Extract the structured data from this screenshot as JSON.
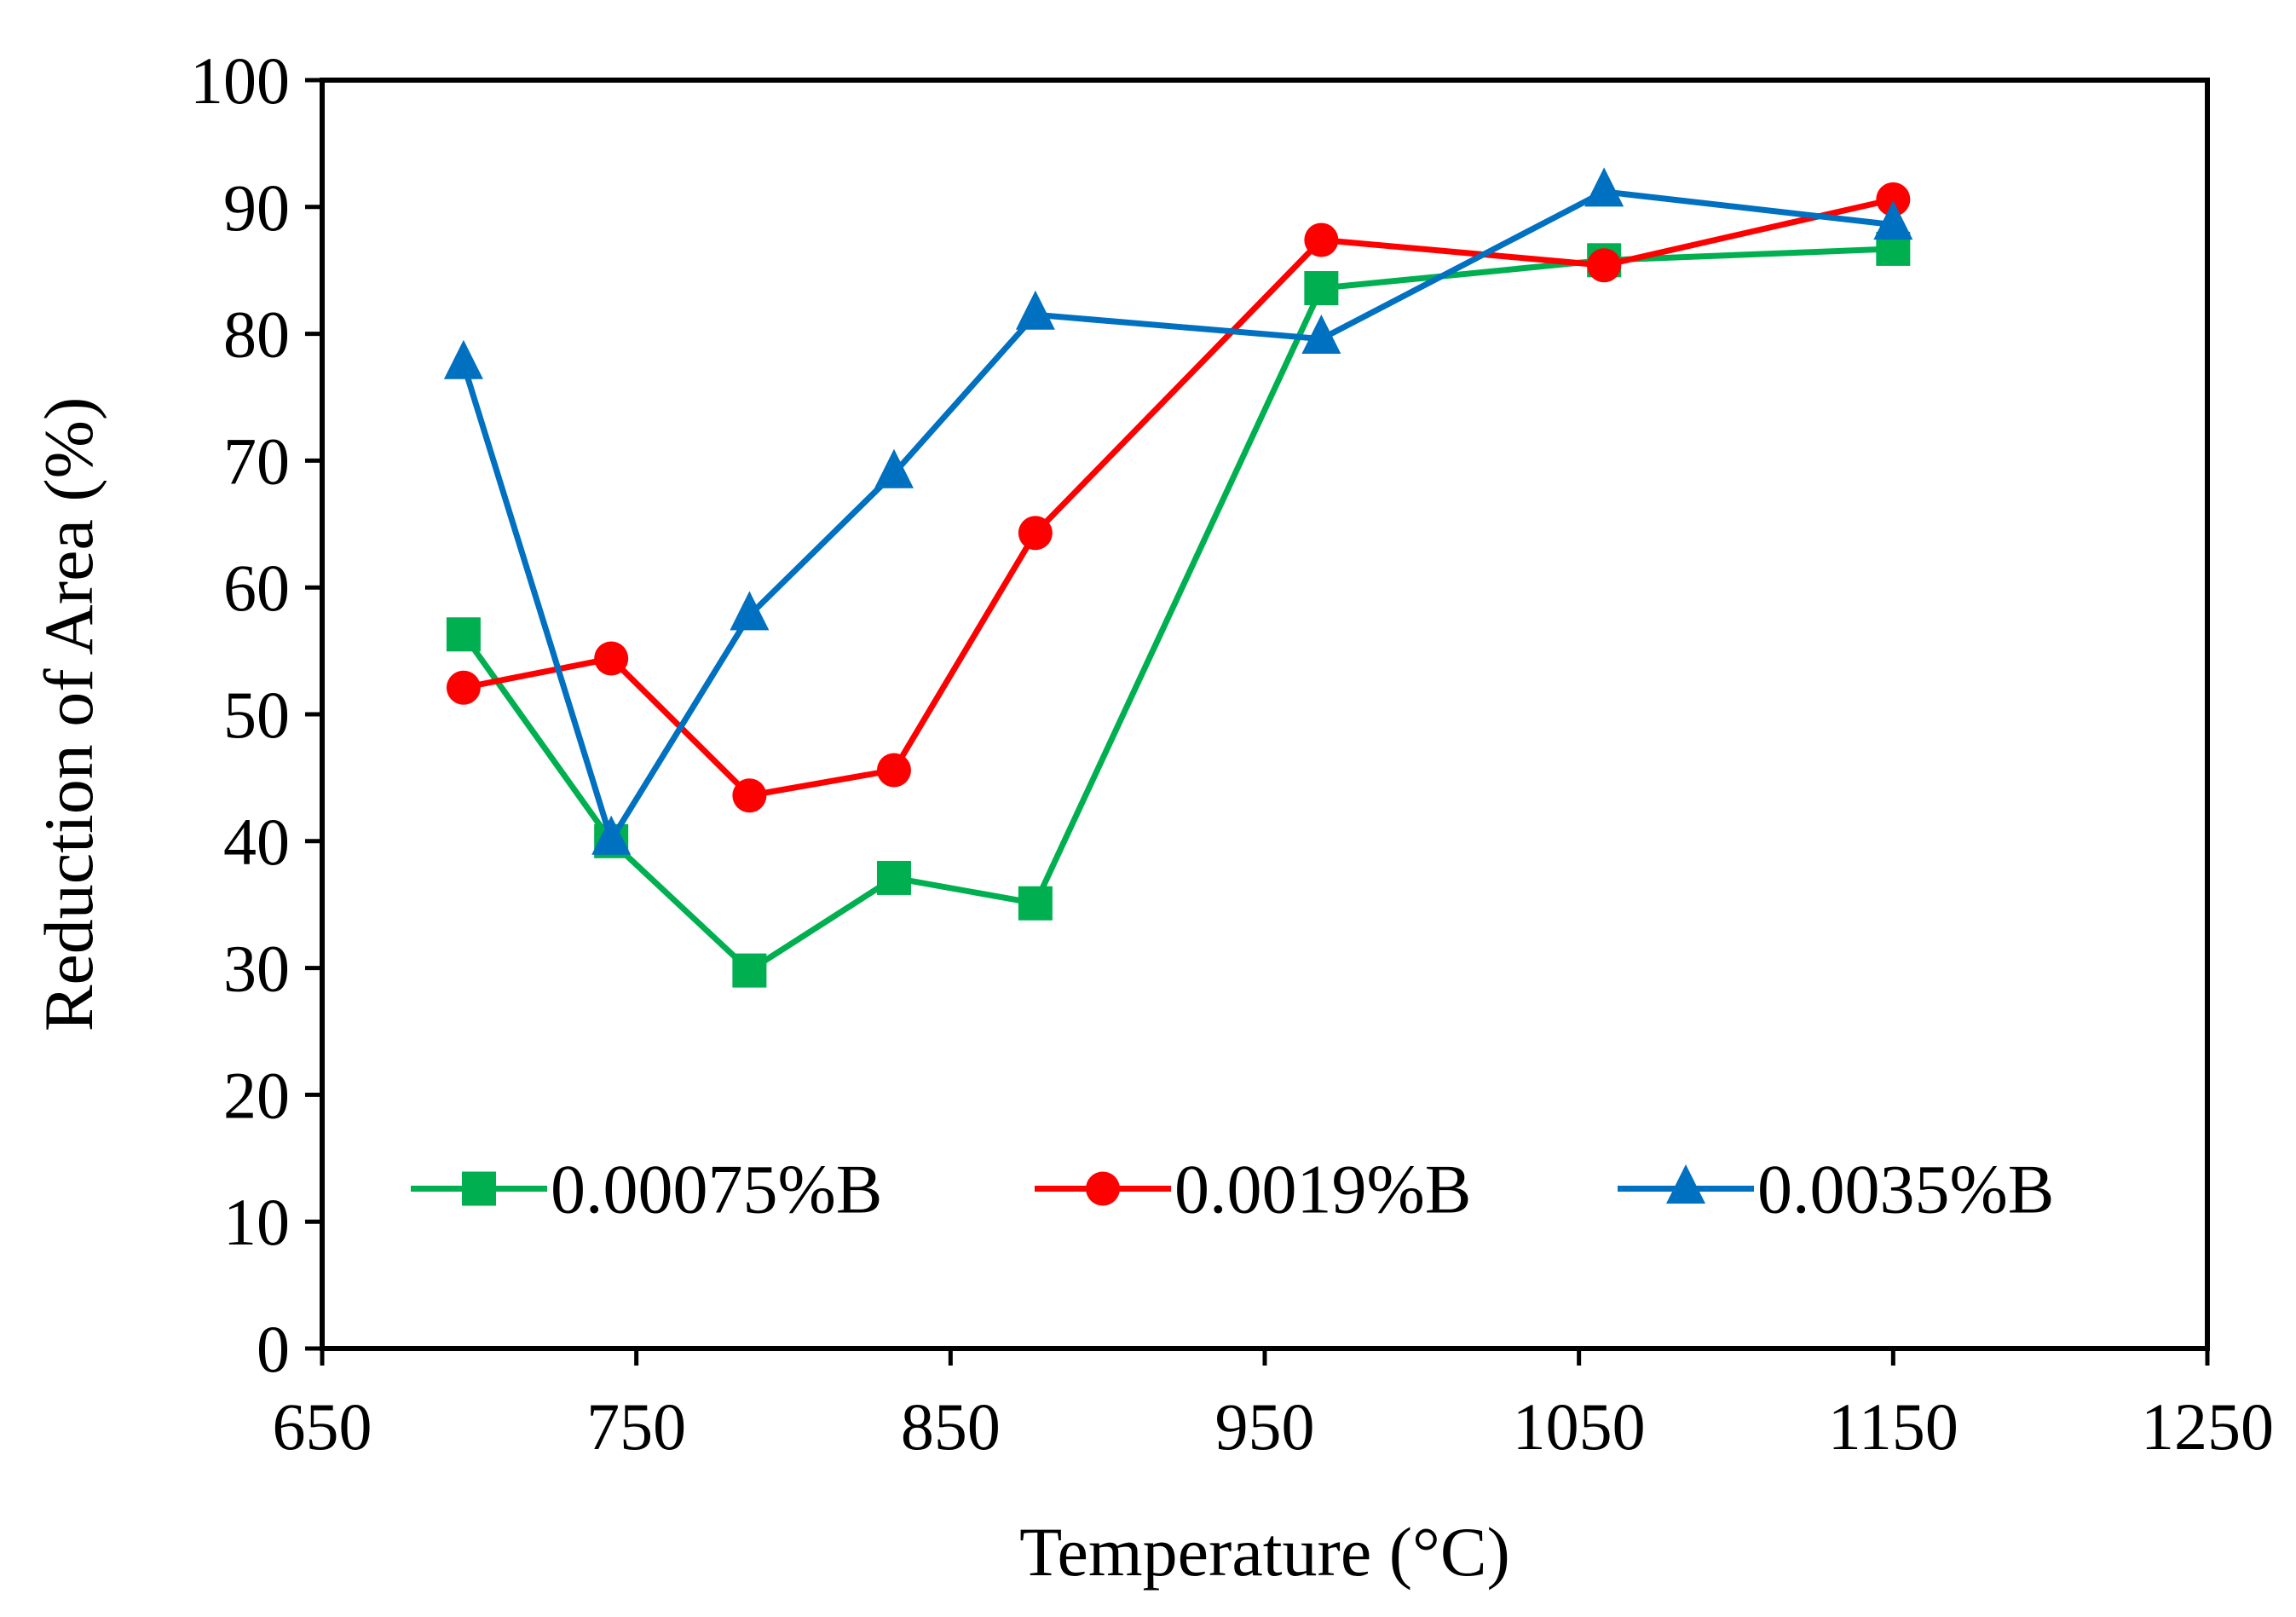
{
  "chart_data": {
    "type": "line",
    "title": "",
    "xlabel": "Temperature (°C)",
    "ylabel": "Reduction of Area (%)",
    "xlim": [
      650,
      1250
    ],
    "ylim": [
      0,
      100
    ],
    "xticks": [
      650,
      750,
      850,
      950,
      1050,
      1150,
      1250
    ],
    "yticks": [
      0,
      10,
      20,
      30,
      40,
      50,
      60,
      70,
      80,
      90,
      100
    ],
    "grid": false,
    "legend_position": "bottom-center-inside",
    "series": [
      {
        "name": "0.00075%B",
        "color": "#00b050",
        "marker": "square",
        "x": [
          695,
          742,
          786,
          832,
          877,
          968,
          1058,
          1150
        ],
        "y": [
          56.3,
          40.0,
          29.8,
          37.1,
          35.1,
          83.6,
          85.8,
          86.7
        ]
      },
      {
        "name": "0.0019%B",
        "color": "#ff0000",
        "marker": "circle",
        "x": [
          695,
          742,
          786,
          832,
          877,
          968,
          1058,
          1150
        ],
        "y": [
          52.1,
          54.4,
          43.6,
          45.6,
          64.3,
          87.4,
          85.4,
          90.6
        ]
      },
      {
        "name": "0.0035%B",
        "color": "#0070c0",
        "marker": "triangle",
        "x": [
          695,
          742,
          786,
          832,
          877,
          968,
          1058,
          1150
        ],
        "y": [
          77.6,
          40.1,
          57.8,
          69.0,
          81.5,
          79.6,
          91.2,
          88.6
        ]
      }
    ]
  }
}
